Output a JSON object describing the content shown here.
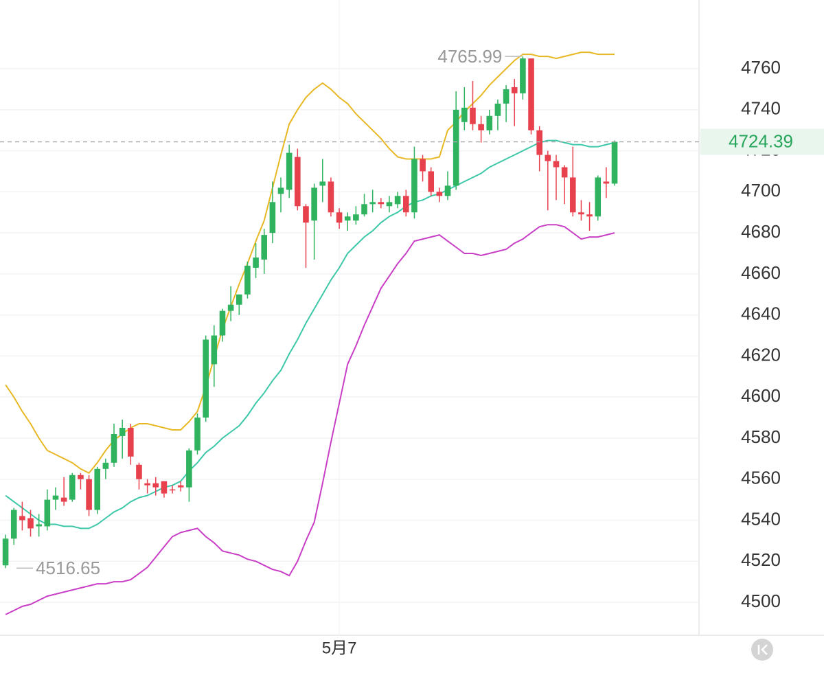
{
  "chart_data": {
    "type": "candlestick",
    "categories": [
      null,
      null,
      null,
      null,
      null,
      null,
      null,
      null,
      null,
      null,
      null,
      null,
      null,
      null,
      null,
      null,
      null,
      null,
      null,
      null,
      null,
      null,
      null,
      null,
      null,
      null,
      null,
      null,
      null,
      null,
      null,
      null,
      null,
      null,
      null,
      null,
      null,
      null,
      null,
      null,
      "5月7",
      null,
      null,
      null,
      null,
      null,
      null,
      null,
      null,
      null,
      null,
      null,
      null,
      null,
      null,
      null,
      null,
      null,
      null,
      null,
      null,
      null,
      null,
      null,
      null,
      null,
      null,
      null,
      null,
      null,
      null,
      null,
      null,
      null
    ],
    "open": [
      4518,
      4531,
      4542,
      4541,
      4537,
      4537,
      4550,
      4551,
      4550,
      4562,
      4560,
      4545,
      4565,
      4568,
      4581,
      4585,
      4567,
      4558,
      4558,
      4559,
      4555,
      4557,
      4556,
      4574,
      4590,
      4616,
      4630,
      4642,
      4645,
      4650,
      4663,
      4667,
      4680,
      4699,
      4701,
      4717,
      4693,
      4686,
      4703,
      4705,
      4690,
      4686,
      4686,
      4689,
      4694,
      4695,
      4693,
      4694,
      4698,
      4690,
      4716,
      4710,
      4700,
      4698,
      4703,
      4734,
      4741,
      4733,
      4730,
      4737,
      4743,
      4751,
      4748,
      4765,
      4730,
      4718,
      4715,
      4712,
      4707,
      4690,
      4689,
      4688,
      4705,
      4704
    ],
    "high": [
      4533,
      4546,
      4549,
      4545,
      4543,
      4555,
      4556,
      4561,
      4563,
      4563,
      4562,
      4566,
      4570,
      4587,
      4589,
      4587,
      4568,
      4560,
      4561,
      4559,
      4557,
      4559,
      4575,
      4592,
      4630,
      4635,
      4643,
      4654,
      4650,
      4666,
      4675,
      4682,
      4705,
      4707,
      4723,
      4721,
      4694,
      4704,
      4716,
      4707,
      4692,
      4690,
      4693,
      4699,
      4701,
      4697,
      4698,
      4700,
      4701,
      4722,
      4718,
      4712,
      4702,
      4710,
      4749,
      4751,
      4754,
      4737,
      4740,
      4745,
      4752,
      4755,
      4765.99,
      4765,
      4732,
      4720,
      4718,
      4713,
      4722,
      4696,
      4695,
      4708,
      4712,
      4725
    ],
    "low": [
      4516.65,
      4528,
      4535,
      4532,
      4532,
      4535,
      4545,
      4547,
      4549,
      4555,
      4542,
      4543,
      4560,
      4566,
      4570,
      4567,
      4555,
      4553,
      4552,
      4551,
      4553,
      4554,
      4549,
      4572,
      4588,
      4605,
      4627,
      4637,
      4640,
      4648,
      4658,
      4660,
      4675,
      4690,
      4697,
      4691,
      4663,
      4667,
      4695,
      4688,
      4682,
      4681,
      4684,
      4688,
      4690,
      4692,
      4690,
      4692,
      4688,
      4687,
      4705,
      4698,
      4695,
      4696,
      4701,
      4730,
      4730,
      4724,
      4728,
      4730,
      4734,
      4732,
      4745,
      4728,
      4710,
      4691,
      4696,
      4694,
      4688,
      4686,
      4681,
      4686,
      4697,
      4703
    ],
    "close": [
      4531,
      4545,
      4540,
      4536,
      4538,
      4550,
      4552,
      4549,
      4562,
      4560,
      4545,
      4565,
      4568,
      4582,
      4585,
      4571,
      4560,
      4557,
      4556,
      4553,
      4554.5,
      4556,
      4574,
      4590,
      4628,
      4630,
      4642,
      4645,
      4650,
      4664,
      4668,
      4679,
      4695,
      4702,
      4719,
      4693,
      4685,
      4702,
      4705,
      4690,
      4685,
      4688,
      4689,
      4694,
      4695,
      4694,
      4695,
      4698,
      4690,
      4716,
      4710,
      4700,
      4698,
      4703,
      4740,
      4741,
      4733,
      4730,
      4737,
      4743,
      4750,
      4748,
      4765,
      4730,
      4718,
      4715,
      4712,
      4707,
      4690,
      4689,
      4688,
      4707,
      4704,
      4724.39
    ],
    "up_color": "#2fb35f",
    "down_color": "#e8414e",
    "series": [
      {
        "color": "#e8b824",
        "values": [
          4606,
          4600,
          4593,
          4587,
          4580,
          4574,
          4572,
          4570,
          4568,
          4565,
          4563,
          4568,
          4574,
          4579,
          4582,
          4585,
          4587,
          4587,
          4586,
          4585,
          4584,
          4584,
          4588,
          4593,
          4605,
          4619,
          4633,
          4644,
          4655,
          4665,
          4676,
          4686,
          4702,
          4718,
          4733,
          4740,
          4746,
          4750,
          4753,
          4750,
          4746,
          4743,
          4738,
          4734,
          4730,
          4726,
          4721,
          4717,
          4716,
          4716,
          4716,
          4716,
          4717,
          4730,
          4734,
          4739,
          4743,
          4747,
          4752,
          4756,
          4760,
          4764,
          4767,
          4767,
          4766,
          4766,
          4765,
          4766,
          4767,
          4768,
          4768,
          4767,
          4767,
          4767
        ]
      },
      {
        "color": "#3cc8a8",
        "values": [
          4552,
          4549,
          4546,
          4543,
          4540,
          4538,
          4538,
          4537,
          4537,
          4536,
          4536,
          4538,
          4541,
          4544,
          4546,
          4549,
          4551,
          4552,
          4554,
          4556,
          4557,
          4559,
          4564,
          4568,
          4573,
          4576,
          4580,
          4583,
          4586,
          4591,
          4597,
          4602,
          4608,
          4613,
          4621,
          4628,
          4636,
          4643,
          4650,
          4657,
          4663,
          4670,
          4674,
          4678,
          4681,
          4685,
          4688,
          4690,
          4693,
          4695,
          4696,
          4698,
          4699,
          4701,
          4703,
          4705,
          4707,
          4709,
          4712,
          4714,
          4716,
          4718,
          4720,
          4722,
          4724,
          4725,
          4725,
          4724,
          4723,
          4723,
          4722,
          4722,
          4723,
          4724
        ]
      },
      {
        "color": "#c93ec6",
        "values": [
          4494,
          4496,
          4498,
          4499,
          4501,
          4503,
          4504,
          4505,
          4506,
          4507,
          4508,
          4509,
          4509,
          4510,
          4510,
          4511,
          4514,
          4517,
          4522,
          4527,
          4532,
          4534,
          4535,
          4536,
          4532,
          4529,
          4525,
          4524,
          4523,
          4521,
          4520,
          4518,
          4516,
          4515,
          4513,
          4520,
          4530,
          4539,
          4558,
          4578,
          4597,
          4616,
          4625,
          4635,
          4644,
          4653,
          4659,
          4665,
          4670,
          4676,
          4677,
          4678,
          4679,
          4676,
          4673,
          4670,
          4670,
          4669,
          4670,
          4671,
          4672,
          4675,
          4677,
          4680,
          4683,
          4684,
          4684,
          4683,
          4680,
          4677,
          4678,
          4678,
          4679,
          4680
        ]
      }
    ],
    "ylim": [
      4490,
      4790
    ],
    "yticks": [
      4500,
      4520,
      4540,
      4560,
      4580,
      4600,
      4620,
      4640,
      4660,
      4680,
      4700,
      4720,
      4740,
      4760
    ],
    "grid": true
  }
}
